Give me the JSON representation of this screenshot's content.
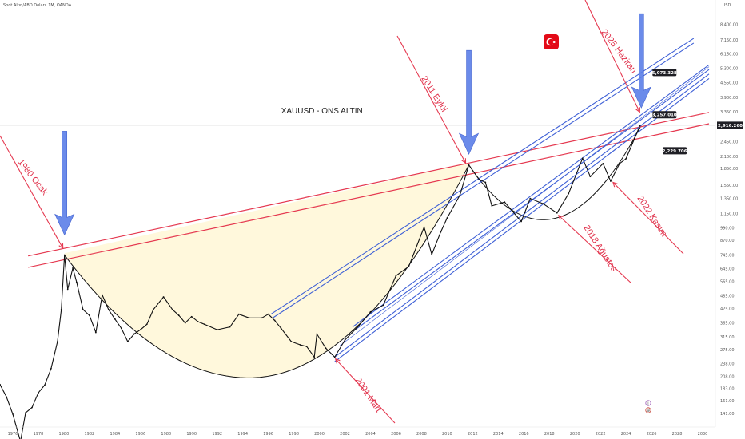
{
  "header": {
    "symbol_line": "Spot Altın/ABD Doları, 1M, OANDA"
  },
  "chart_data": {
    "type": "line",
    "title": "XAUUSD - ONS ALTIN",
    "currency": "USD",
    "y_scale": "log",
    "xlim": [
      1975,
      2031
    ],
    "ylim": [
      141,
      10000
    ],
    "x_ticks": [
      "1976",
      "1978",
      "1980",
      "1982",
      "1984",
      "1986",
      "1988",
      "1990",
      "1992",
      "1994",
      "1996",
      "1998",
      "2000",
      "2002",
      "2004",
      "2006",
      "2008",
      "2010",
      "2012",
      "2014",
      "2016",
      "2018",
      "2020",
      "2022",
      "2024",
      "2026",
      "2028",
      "2030"
    ],
    "y_ticks": [
      "8,400.00",
      "7,150.00",
      "6,150.00",
      "5,300.00",
      "4,550.00",
      "3,900.00",
      "3,350.00",
      "2,850.00",
      "2,450.00",
      "2,100.00",
      "1,850.00",
      "1,550.00",
      "1,350.00",
      "1,150.00",
      "990.00",
      "870.00",
      "745.00",
      "645.00",
      "565.00",
      "485.00",
      "425.00",
      "365.00",
      "315.00",
      "275.00",
      "238.00",
      "208.00",
      "183.00",
      "161.00",
      "141.00"
    ],
    "current_price": {
      "label": "2,916.260",
      "value": 2916.26
    },
    "price_tags": [
      {
        "label": "5,073.328",
        "value": 5073.33,
        "year": 2026.2
      },
      {
        "label": "3,257.010",
        "value": 3257.01,
        "year": 2026.2
      },
      {
        "label": "2,229.706",
        "value": 2229.71,
        "year": 2027.0
      }
    ],
    "annotations": [
      {
        "text": "1980 Ocak",
        "year": 1980.0
      },
      {
        "text": "2011 Eylül",
        "year": 2011.7
      },
      {
        "text": "2025 Haziran",
        "year": 2025.4
      },
      {
        "text": "2001 Mart",
        "year": 2001.2
      },
      {
        "text": "2018 Ağustos",
        "year": 2018.6
      },
      {
        "text": "2022 Kasım",
        "year": 2022.8
      }
    ],
    "series": [
      {
        "points": [
          [
            1975.0,
            191
          ],
          [
            1975.5,
            168
          ],
          [
            1976.0,
            140
          ],
          [
            1976.6,
            105
          ],
          [
            1977.0,
            142
          ],
          [
            1977.5,
            150
          ],
          [
            1978.0,
            175
          ],
          [
            1978.5,
            190
          ],
          [
            1979.0,
            226
          ],
          [
            1979.5,
            300
          ],
          [
            1979.8,
            420
          ],
          [
            1980.05,
            745
          ],
          [
            1980.3,
            520
          ],
          [
            1980.7,
            650
          ],
          [
            1981.0,
            560
          ],
          [
            1981.5,
            420
          ],
          [
            1982.0,
            395
          ],
          [
            1982.5,
            330
          ],
          [
            1983.0,
            490
          ],
          [
            1983.5,
            420
          ],
          [
            1984.0,
            380
          ],
          [
            1984.5,
            345
          ],
          [
            1985.0,
            300
          ],
          [
            1985.5,
            325
          ],
          [
            1986.0,
            340
          ],
          [
            1986.5,
            360
          ],
          [
            1987.0,
            420
          ],
          [
            1987.8,
            480
          ],
          [
            1988.5,
            420
          ],
          [
            1989.0,
            395
          ],
          [
            1989.5,
            365
          ],
          [
            1990.0,
            390
          ],
          [
            1990.5,
            370
          ],
          [
            1991.0,
            360
          ],
          [
            1992.0,
            340
          ],
          [
            1993.0,
            350
          ],
          [
            1993.7,
            400
          ],
          [
            1994.5,
            385
          ],
          [
            1995.5,
            385
          ],
          [
            1996.0,
            400
          ],
          [
            1996.5,
            375
          ],
          [
            1997.0,
            345
          ],
          [
            1997.8,
            300
          ],
          [
            1998.5,
            290
          ],
          [
            1999.0,
            285
          ],
          [
            1999.6,
            255
          ],
          [
            1999.8,
            325
          ],
          [
            2000.5,
            280
          ],
          [
            2001.0,
            262
          ],
          [
            2001.2,
            255
          ],
          [
            2002.0,
            305
          ],
          [
            2003.0,
            350
          ],
          [
            2004.0,
            410
          ],
          [
            2005.0,
            440
          ],
          [
            2006.0,
            600
          ],
          [
            2007.0,
            660
          ],
          [
            2008.2,
            1000
          ],
          [
            2008.8,
            750
          ],
          [
            2009.5,
            950
          ],
          [
            2010.0,
            1100
          ],
          [
            2011.0,
            1400
          ],
          [
            2011.7,
            1920
          ],
          [
            2012.5,
            1650
          ],
          [
            2013.0,
            1600
          ],
          [
            2013.5,
            1250
          ],
          [
            2014.5,
            1300
          ],
          [
            2015.8,
            1060
          ],
          [
            2016.5,
            1350
          ],
          [
            2017.5,
            1280
          ],
          [
            2018.6,
            1160
          ],
          [
            2019.5,
            1420
          ],
          [
            2020.6,
            2060
          ],
          [
            2021.2,
            1700
          ],
          [
            2022.2,
            1950
          ],
          [
            2022.8,
            1620
          ],
          [
            2023.5,
            1950
          ],
          [
            2024.0,
            2050
          ],
          [
            2024.5,
            2400
          ],
          [
            2025.1,
            2916
          ]
        ]
      }
    ]
  },
  "sidebar_icons": {
    "icon1": "i",
    "icon2": "⊕"
  }
}
